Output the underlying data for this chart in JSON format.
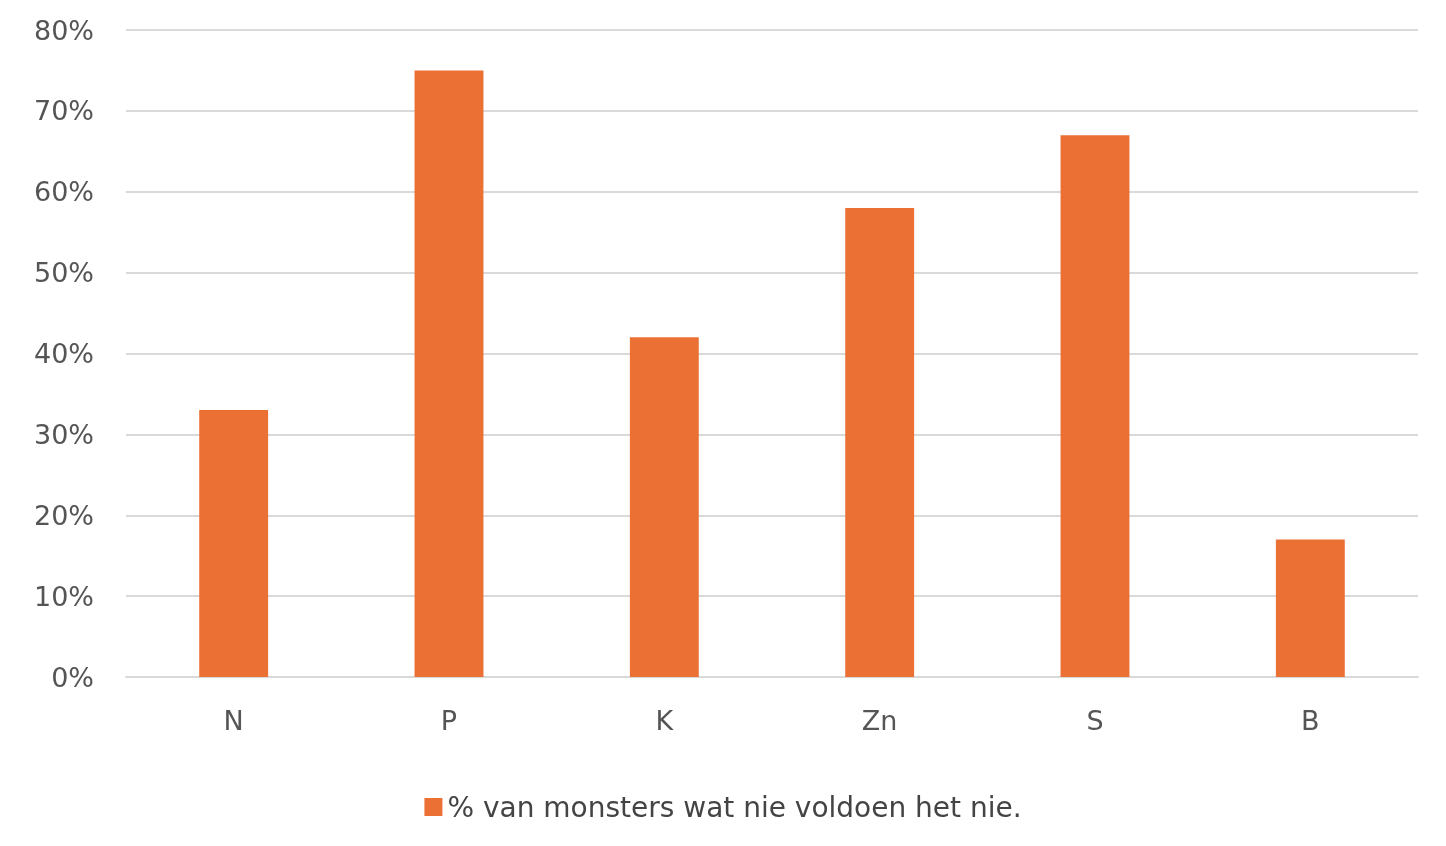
{
  "chart_data": {
    "type": "bar",
    "categories": [
      "N",
      "P",
      "K",
      "Zn",
      "S",
      "B"
    ],
    "series": [
      {
        "name": "% van monsters wat nie voldoen het nie.",
        "color": "#eb7033",
        "values": [
          33,
          75,
          42,
          58,
          67,
          17
        ]
      }
    ],
    "ylim": [
      0,
      80
    ],
    "yticks": [
      {
        "value": 0,
        "label": "0%"
      },
      {
        "value": 10,
        "label": "10%"
      },
      {
        "value": 20,
        "label": "20%"
      },
      {
        "value": 30,
        "label": "30%"
      },
      {
        "value": 40,
        "label": "40%"
      },
      {
        "value": 50,
        "label": "50%"
      },
      {
        "value": 60,
        "label": "60%"
      },
      {
        "value": 70,
        "label": "70%"
      },
      {
        "value": 80,
        "label": "80%"
      }
    ],
    "grid": "y",
    "legend": "bottom"
  }
}
